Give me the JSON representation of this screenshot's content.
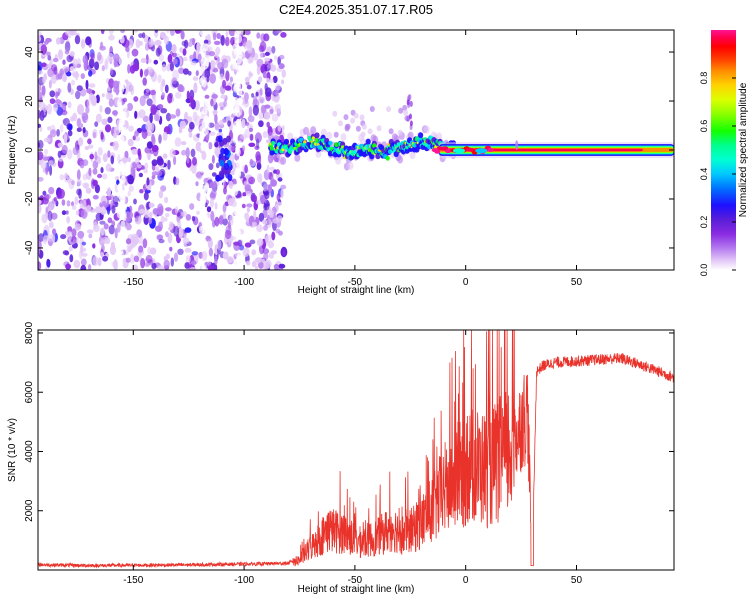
{
  "title": "C2E4.2025.351.07.17.R05",
  "chart_data": [
    {
      "type": "heatmap",
      "title": "",
      "xlabel": "Height of straight line (km)",
      "ylabel": "Frequency (Hz)",
      "xlim": [
        -193,
        94
      ],
      "ylim": [
        -49,
        49
      ],
      "xticks": [
        -150,
        -100,
        -50,
        0,
        50
      ],
      "yticks": [
        -40,
        -20,
        0,
        20,
        40
      ],
      "colorbar": {
        "label": "Normalized spectral amplitude",
        "range": [
          0,
          1
        ],
        "ticks": [
          0.0,
          0.2,
          0.4,
          0.6,
          0.8
        ],
        "colors": [
          "#ffffff",
          "#e3c8f7",
          "#b57cf0",
          "#8a2be2",
          "#5a1ed8",
          "#1e10ff",
          "#0072ff",
          "#00c8ff",
          "#00ffd2",
          "#00ff8c",
          "#14ff00",
          "#8cff00",
          "#dcff00",
          "#ffd200",
          "#ff8c00",
          "#ff3c00",
          "#ff0000",
          "#ff0050",
          "#ff1493"
        ]
      },
      "regions": [
        {
          "name": "noise",
          "x_range": [
            -193,
            -85
          ],
          "f_range": [
            -49,
            49
          ],
          "amplitude": "0.0-0.3"
        },
        {
          "name": "broadband burst",
          "x_range": [
            -112,
            -106
          ],
          "f_range": [
            -10,
            5
          ],
          "amplitude": "0.2-0.4"
        },
        {
          "name": "scattered signal",
          "x_range": [
            -88,
            -30
          ],
          "f_center": [
            2,
            1
          ],
          "amplitude": "0.2-0.7"
        },
        {
          "name": "stable signal",
          "x_range": [
            -10,
            94
          ],
          "f_center": [
            0,
            0
          ],
          "amplitude": "0.9-1.0"
        }
      ]
    },
    {
      "type": "line",
      "title": "",
      "xlabel": "Height of straight line (km)",
      "ylabel": "SNR (10 * v/v)",
      "xlim": [
        -193,
        94
      ],
      "ylim": [
        0,
        8100
      ],
      "xticks": [
        -150,
        -100,
        -50,
        0,
        50
      ],
      "yticks": [
        2000,
        4000,
        6000,
        8000
      ],
      "series": [
        {
          "name": "SNR",
          "color": "#e8322a",
          "x": [
            -193,
            -170,
            -150,
            -130,
            -110,
            -100,
            -90,
            -80,
            -75,
            -70,
            -62,
            -55,
            -48,
            -40,
            -33,
            -28,
            -22,
            -18,
            -14,
            -10,
            -6,
            -2,
            2,
            6,
            10,
            14,
            18,
            22,
            25,
            28,
            30,
            32,
            35,
            40,
            50,
            60,
            70,
            80,
            94
          ],
          "values": [
            180,
            150,
            160,
            170,
            190,
            200,
            210,
            230,
            400,
            900,
            1600,
            1500,
            1100,
            1300,
            1700,
            1400,
            1700,
            2100,
            2500,
            3200,
            3500,
            3800,
            4200,
            4100,
            4000,
            4300,
            4600,
            5200,
            6000,
            6500,
            200,
            6700,
            6900,
            7000,
            7050,
            7100,
            7150,
            6900,
            6500
          ]
        }
      ]
    }
  ]
}
